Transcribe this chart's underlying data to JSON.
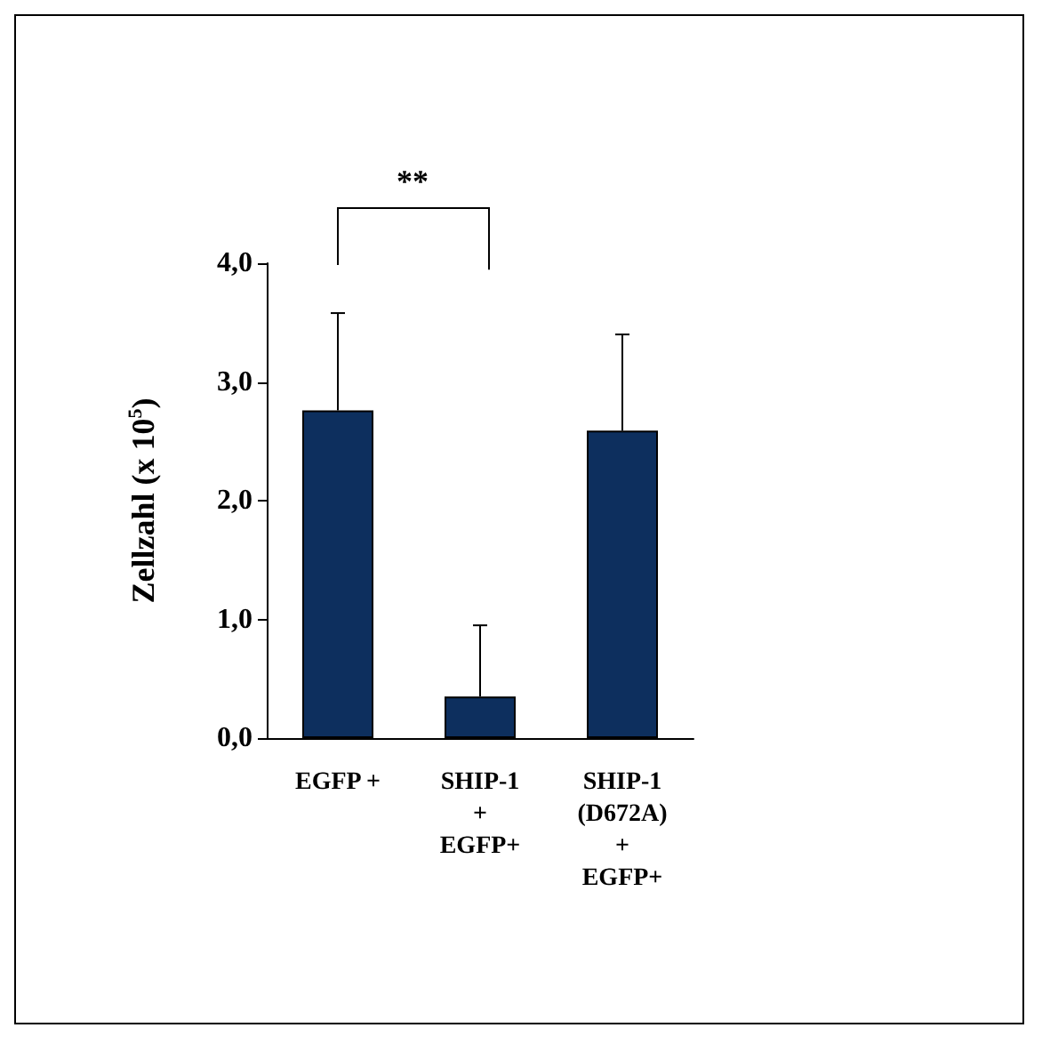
{
  "chart_data": {
    "type": "bar",
    "ylabel": "Zellzahl (x 10$^{5}$)",
    "categories": [
      "EGFP +",
      "SHIP-1\n+\nEGFP+",
      "SHIP-1\n(D672A)\n+\nEGFP+"
    ],
    "values": [
      2.76,
      0.35,
      2.59
    ],
    "color": "#0d2f5e",
    "errors": [
      [
        2.76,
        3.58
      ],
      [
        0.35,
        0.95
      ],
      [
        2.59,
        3.4
      ]
    ],
    "ylim": [
      0,
      4
    ],
    "yticks": [
      {
        "value": 0,
        "label": "0,0"
      },
      {
        "value": 1,
        "label": "1,0"
      },
      {
        "value": 2,
        "label": "2,0"
      },
      {
        "value": 3,
        "label": "3,0"
      },
      {
        "value": 4,
        "label": "4,0"
      }
    ],
    "annotations": [
      "**"
    ],
    "grid": false
  }
}
